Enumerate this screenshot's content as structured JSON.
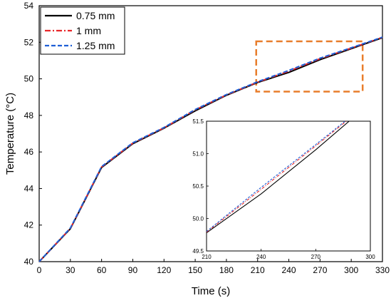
{
  "chart_data": [
    {
      "type": "line",
      "title": "",
      "xlabel": "Time (s)",
      "ylabel": "Temperature (°C)",
      "xlim": [
        0,
        330
      ],
      "ylim": [
        40,
        54
      ],
      "xticks": [
        0,
        30,
        60,
        90,
        120,
        150,
        180,
        210,
        240,
        270,
        300,
        330
      ],
      "yticks": [
        40,
        42,
        44,
        46,
        48,
        50,
        52,
        54
      ],
      "grid": false,
      "legend_position": "top-left",
      "x": [
        0,
        30,
        60,
        90,
        120,
        150,
        180,
        210,
        240,
        270,
        300,
        330
      ],
      "series": [
        {
          "name": "0.75 mm",
          "color": "#000000",
          "dash": "solid",
          "values": [
            40.0,
            41.8,
            45.15,
            46.45,
            47.3,
            48.25,
            49.1,
            49.8,
            50.35,
            51.05,
            51.65,
            52.25
          ]
        },
        {
          "name": "1 mm",
          "color": "#e8272a",
          "dash": "dash-dot",
          "values": [
            40.0,
            41.82,
            45.18,
            46.48,
            47.32,
            48.3,
            49.12,
            49.82,
            50.42,
            51.1,
            51.68,
            52.27
          ]
        },
        {
          "name": "1.25 mm",
          "color": "#1f5fd6",
          "dash": "dashed",
          "values": [
            40.0,
            41.84,
            45.2,
            46.5,
            47.34,
            48.32,
            49.14,
            49.84,
            50.46,
            51.13,
            51.7,
            52.28
          ]
        }
      ],
      "annotations": [
        {
          "type": "zoom-box",
          "x_range": [
            210,
            300
          ],
          "y_range": [
            49.3,
            52.05
          ],
          "color": "#e87d2b"
        }
      ]
    },
    {
      "type": "line",
      "title": "",
      "xlabel": "",
      "ylabel": "",
      "xlim": [
        210,
        300
      ],
      "ylim": [
        49.5,
        51.5
      ],
      "xticks": [
        210,
        240,
        270,
        300
      ],
      "yticks": [
        49.5,
        50.0,
        50.5,
        51.0,
        51.5
      ],
      "grid": false,
      "x": [
        210,
        240,
        270,
        300
      ],
      "series": [
        {
          "name": "0.75 mm",
          "color": "#000000",
          "dash": "solid",
          "values": [
            49.78,
            50.38,
            51.06,
            51.78
          ]
        },
        {
          "name": "1 mm",
          "color": "#e8272a",
          "dash": "dash-dot",
          "values": [
            49.79,
            50.45,
            51.12,
            51.8
          ]
        },
        {
          "name": "1.25 mm",
          "color": "#1f5fd6",
          "dash": "dashed",
          "values": [
            49.8,
            50.48,
            51.14,
            51.81
          ]
        }
      ]
    }
  ]
}
